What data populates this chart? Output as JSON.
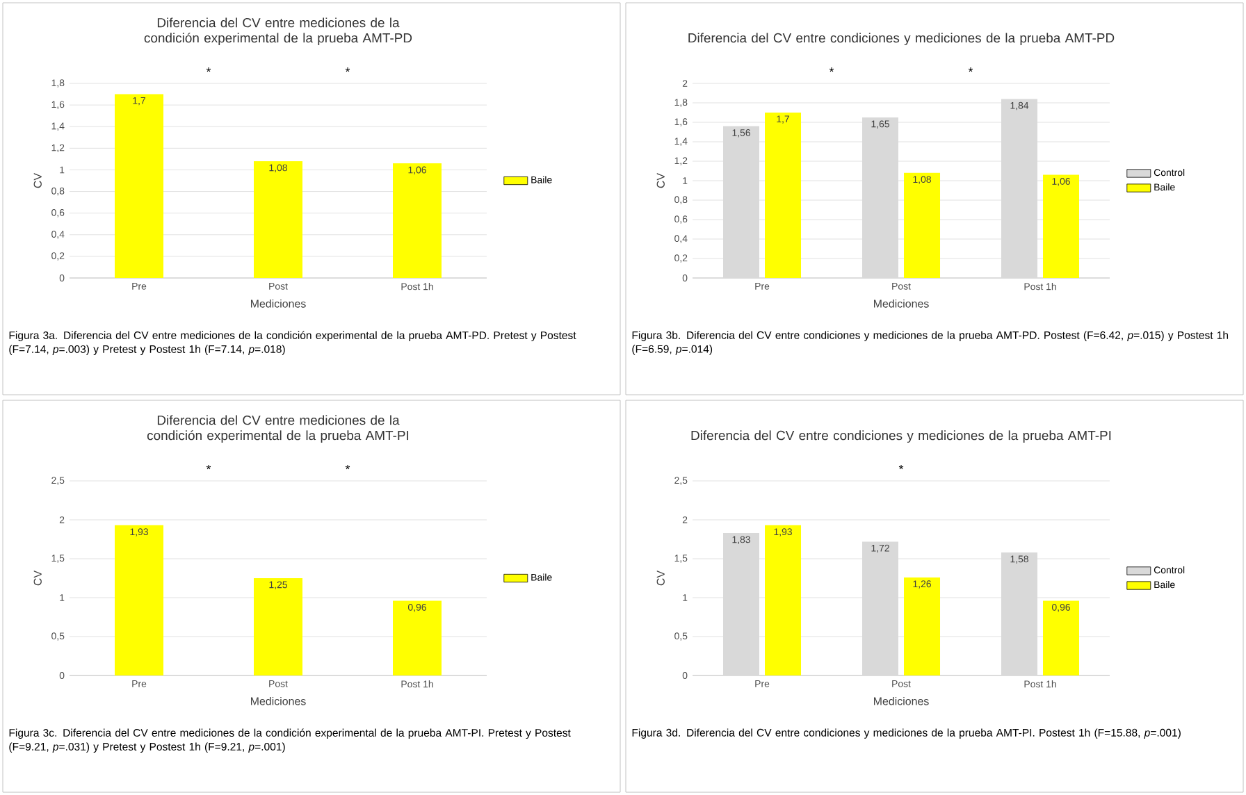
{
  "chart_data": [
    {
      "type": "bar",
      "title": "Diferencia del CV entre mediciones de la condición experimental de la prueba AMT-PD",
      "xlabel": "Mediciones",
      "ylabel": "CV",
      "categories": [
        "Pre",
        "Post",
        "Post 1h"
      ],
      "series": [
        {
          "name": "Baile",
          "color": "#ffff00",
          "values": [
            1.7,
            1.08,
            1.06
          ],
          "value_labels": [
            "1,7",
            "1,08",
            "1,06"
          ]
        }
      ],
      "ylim": [
        0,
        1.8
      ],
      "yticks": [
        0,
        {
          "value": 0.2,
          "label": "0,2"
        },
        {
          "value": 0.4,
          "label": "0,4"
        },
        {
          "value": 0.6,
          "label": "0,6"
        },
        {
          "value": 0.8,
          "label": "0,8"
        },
        1,
        {
          "value": 1.2,
          "label": "1,2"
        },
        {
          "value": 1.4,
          "label": "1,4"
        },
        {
          "value": 1.6,
          "label": "1,6"
        },
        {
          "value": 1.8,
          "label": "1,8"
        }
      ],
      "grid": "y",
      "legend": "right",
      "annotations": [
        "*",
        "*",
        "Figura 3a. Diferencia del CV entre mediciones de la condición experimental de la prueba AMT-PD. Pretest y Postest (F=7.14, *p*=.003) y Pretest y Postest 1h (F=7.14, *p*=.018)"
      ]
    },
    {
      "type": "bar",
      "title": "Diferencia del CV entre condiciones y mediciones de la prueba AMT-PD",
      "xlabel": "Mediciones",
      "ylabel": "CV",
      "categories": [
        "Pre",
        "Post",
        "Post 1h"
      ],
      "series": [
        {
          "name": "Control",
          "color": "#d9d9d9",
          "values": [
            1.56,
            1.65,
            1.84
          ],
          "value_labels": [
            "1,56",
            "1,65",
            "1,84"
          ]
        },
        {
          "name": "Baile",
          "color": "#ffff00",
          "values": [
            1.7,
            1.08,
            1.06
          ],
          "value_labels": [
            "1,7",
            "1,08",
            "1,06"
          ]
        }
      ],
      "ylim": [
        0,
        2
      ],
      "yticks": [
        0,
        {
          "value": 0.2,
          "label": "0,2"
        },
        {
          "value": 0.4,
          "label": "0,4"
        },
        {
          "value": 0.6,
          "label": "0,6"
        },
        {
          "value": 0.8,
          "label": "0,8"
        },
        1,
        {
          "value": 1.2,
          "label": "1,2"
        },
        {
          "value": 1.4,
          "label": "1,4"
        },
        {
          "value": 1.6,
          "label": "1,6"
        },
        {
          "value": 1.8,
          "label": "1,8"
        },
        2
      ],
      "grid": "y",
      "legend": "right",
      "annotations": [
        "*",
        "*",
        "Figura 3b. Diferencia del CV entre condiciones y mediciones de la prueba AMT-PD. Postest (F=6.42, *p*=.015) y Postest 1h (F=6.59, *p*=.014)"
      ]
    },
    {
      "type": "bar",
      "title": "Diferencia del CV entre mediciones de la condición experimental de la prueba AMT-PI",
      "xlabel": "Mediciones",
      "ylabel": "CV",
      "categories": [
        "Pre",
        "Post",
        "Post 1h"
      ],
      "series": [
        {
          "name": "Baile",
          "color": "#ffff00",
          "values": [
            1.93,
            1.25,
            0.96
          ],
          "value_labels": [
            "1,93",
            "1,25",
            "0,96"
          ]
        }
      ],
      "ylim": [
        0,
        2.5
      ],
      "yticks": [
        0,
        {
          "value": 0.5,
          "label": "0,5"
        },
        1,
        {
          "value": 1.5,
          "label": "1,5"
        },
        2,
        {
          "value": 2.5,
          "label": "2,5"
        }
      ],
      "grid": "y",
      "legend": "right",
      "annotations": [
        "*",
        "*",
        "Figura 3c. Diferencia del CV entre mediciones de la condición experimental de la prueba AMT-PI. Pretest y Postest (F=9.21, *p*=.031) y Pretest y Postest 1h (F=9.21, *p*=.001)"
      ]
    },
    {
      "type": "bar",
      "title": "Diferencia del CV entre condiciones y mediciones de la prueba AMT-PI",
      "xlabel": "Mediciones",
      "ylabel": "CV",
      "categories": [
        "Pre",
        "Post",
        "Post 1h"
      ],
      "series": [
        {
          "name": "Control",
          "color": "#d9d9d9",
          "values": [
            1.83,
            1.72,
            1.58
          ],
          "value_labels": [
            "1,83",
            "1,72",
            "1,58"
          ]
        },
        {
          "name": "Baile",
          "color": "#ffff00",
          "values": [
            1.93,
            1.26,
            0.96
          ],
          "value_labels": [
            "1,93",
            "1,26",
            "0,96"
          ]
        }
      ],
      "ylim": [
        0,
        2.5
      ],
      "yticks": [
        0,
        {
          "value": 0.5,
          "label": "0,5"
        },
        1,
        {
          "value": 1.5,
          "label": "1,5"
        },
        2,
        {
          "value": 2.5,
          "label": "2,5"
        }
      ],
      "grid": "y",
      "legend": "right",
      "annotations": [
        "*",
        "Figura 3d. Diferencia del CV entre condiciones y mediciones de la prueba AMT-PI. Postest 1h (F=15.88, *p*=.001)"
      ]
    }
  ]
}
